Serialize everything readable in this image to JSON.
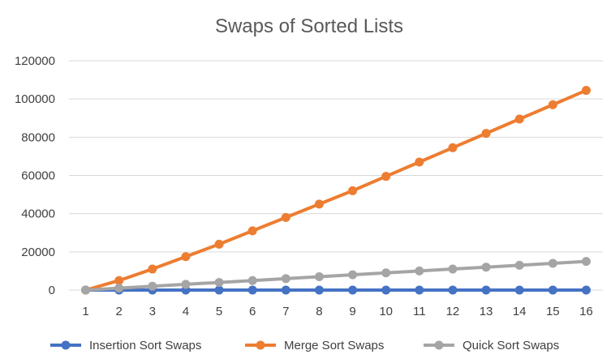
{
  "chart_data": {
    "type": "line",
    "title": "Swaps of Sorted Lists",
    "xlabel": "",
    "ylabel": "",
    "x": [
      1,
      2,
      3,
      4,
      5,
      6,
      7,
      8,
      9,
      10,
      11,
      12,
      13,
      14,
      15,
      16
    ],
    "x_tick_labels": [
      "1",
      "2",
      "3",
      "4",
      "5",
      "6",
      "7",
      "8",
      "9",
      "10",
      "11",
      "12",
      "13",
      "14",
      "15",
      "16"
    ],
    "ylim": [
      0,
      120000
    ],
    "y_ticks": [
      0,
      20000,
      40000,
      60000,
      80000,
      100000,
      120000
    ],
    "y_tick_labels": [
      "0",
      "20000",
      "40000",
      "60000",
      "80000",
      "100000",
      "120000"
    ],
    "grid": true,
    "legend_position": "bottom",
    "series": [
      {
        "name": "Insertion Sort Swaps",
        "color": "#4472c4",
        "values": [
          0,
          0,
          0,
          0,
          0,
          0,
          0,
          0,
          0,
          0,
          0,
          0,
          0,
          0,
          0,
          0
        ]
      },
      {
        "name": "Merge Sort Swaps",
        "color": "#ed7d31",
        "values": [
          0,
          5000,
          11000,
          17500,
          24000,
          31000,
          38000,
          45000,
          52000,
          59500,
          67000,
          74500,
          82000,
          89500,
          97000,
          104500
        ]
      },
      {
        "name": "Quick Sort Swaps",
        "color": "#a5a5a5",
        "values": [
          0,
          1000,
          2000,
          3000,
          4000,
          5000,
          6000,
          7000,
          8000,
          9000,
          10000,
          11000,
          12000,
          13000,
          14000,
          15000
        ]
      }
    ]
  }
}
